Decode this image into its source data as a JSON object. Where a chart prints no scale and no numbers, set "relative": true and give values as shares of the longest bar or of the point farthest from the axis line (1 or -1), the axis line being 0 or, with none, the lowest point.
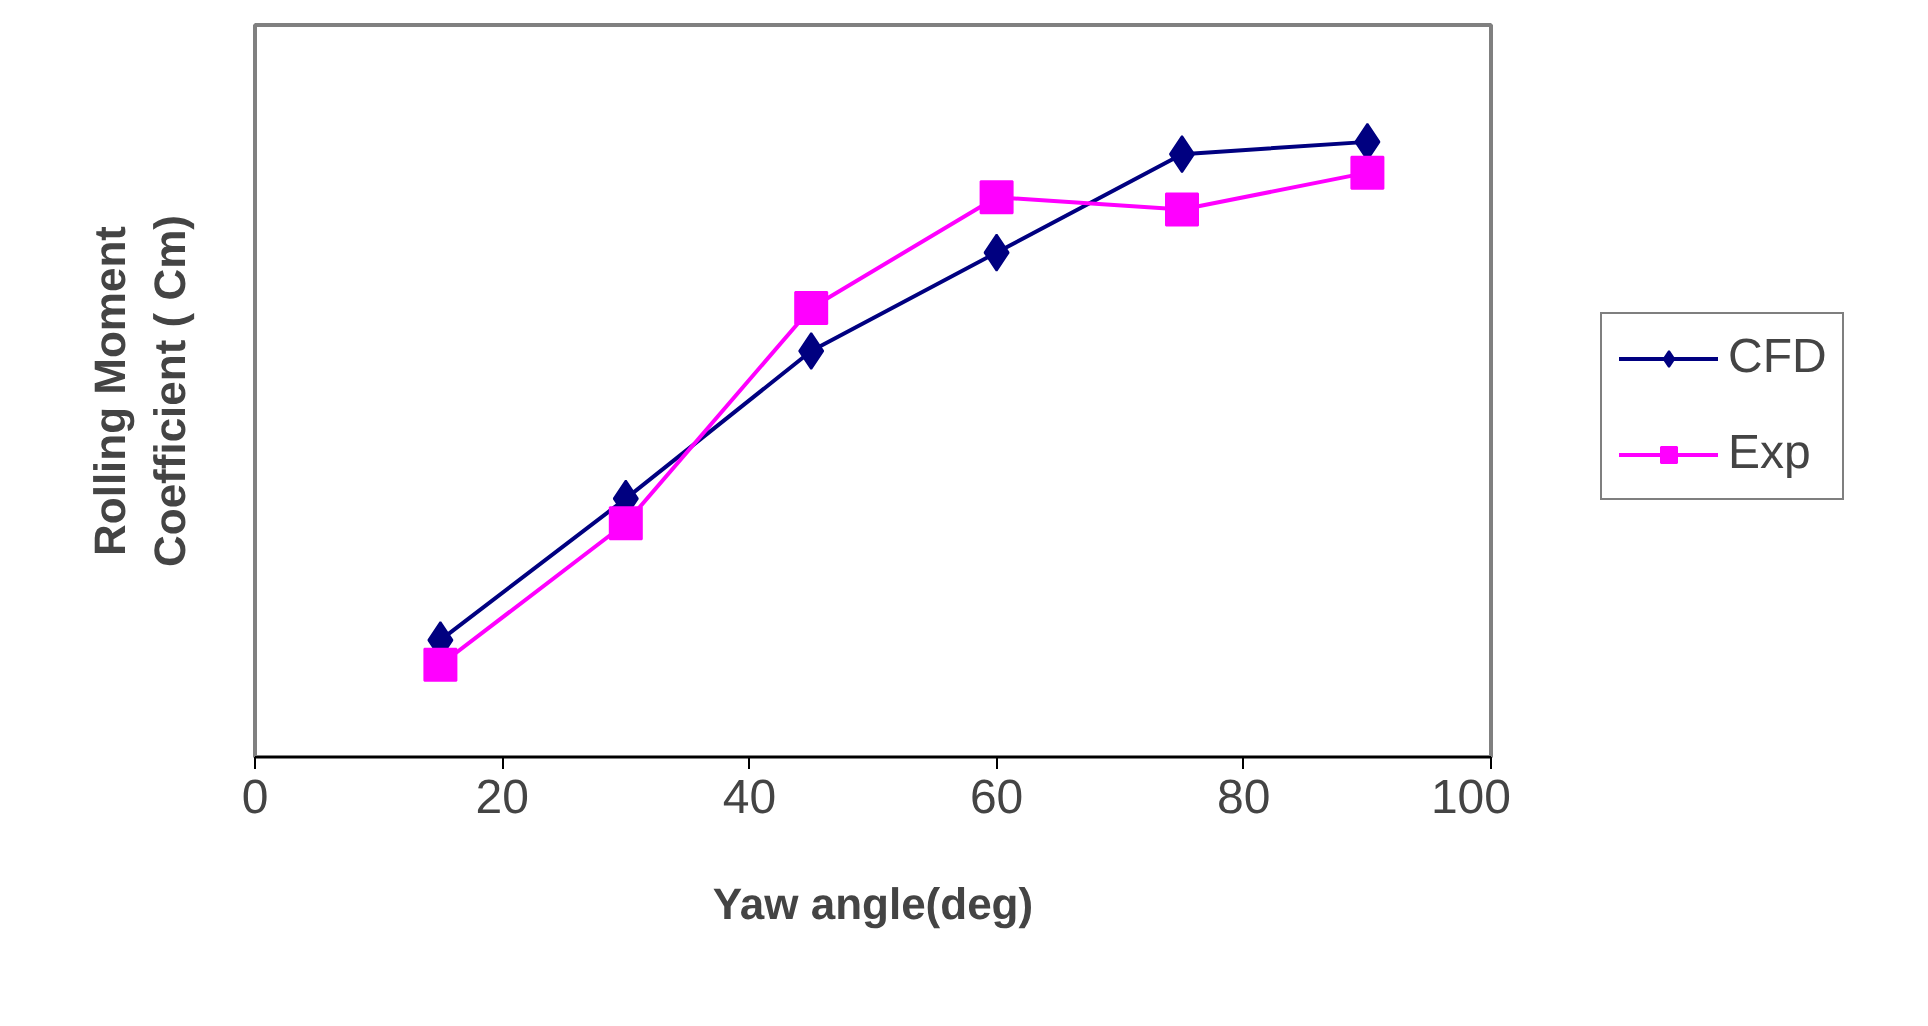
{
  "chart_data": {
    "type": "line",
    "xlabel": "Yaw angle(deg)",
    "ylabel": "Rolling Moment\nCoefficient ( Cm)",
    "relative": true,
    "xlim": [
      0,
      100
    ],
    "xticks": [
      0,
      20,
      40,
      60,
      80,
      100
    ],
    "grid": false,
    "legend": "right",
    "x": [
      15,
      30,
      45,
      60,
      75,
      90
    ],
    "series": [
      {
        "name": "CFD",
        "color": "#000080",
        "marker": "diamond",
        "values": [
          0.19,
          0.42,
          0.66,
          0.82,
          0.98,
          1.0
        ]
      },
      {
        "name": "Exp",
        "color": "#ff00ff",
        "marker": "square",
        "values": [
          0.15,
          0.38,
          0.73,
          0.91,
          0.89,
          0.95
        ]
      }
    ]
  }
}
